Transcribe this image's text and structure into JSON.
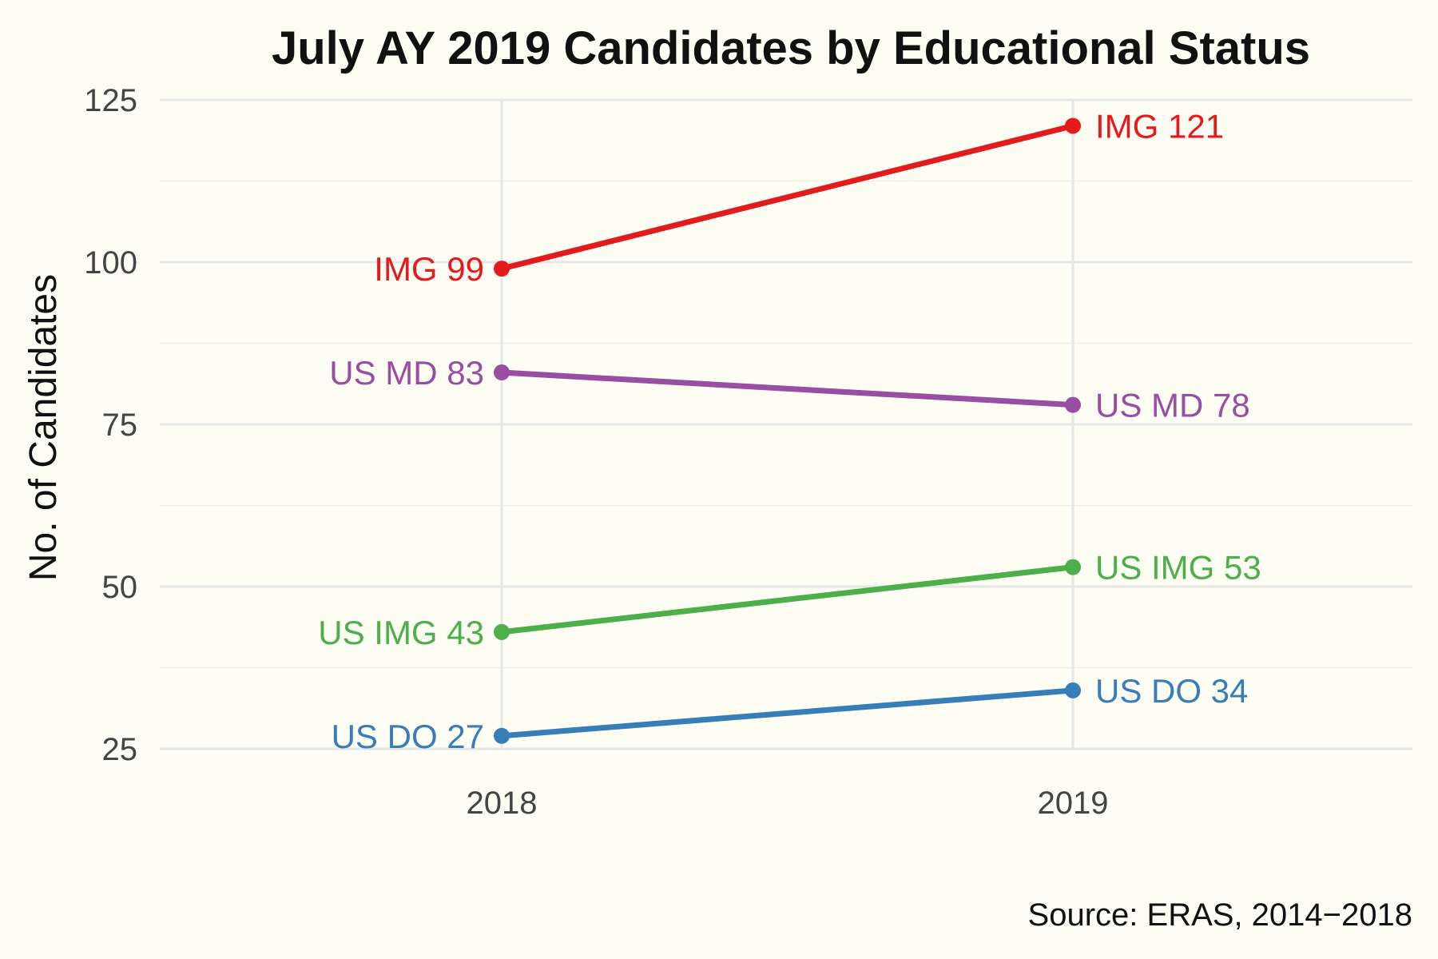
{
  "chart_data": {
    "type": "line",
    "title": "July AY 2019 Candidates by Educational Status",
    "xlabel": "",
    "ylabel": "No. of Candidates",
    "caption": "Source: ERAS, 2014−2018",
    "x": [
      "2018",
      "2019"
    ],
    "ylim": [
      25,
      125
    ],
    "yticks": [
      25,
      50,
      75,
      100,
      125
    ],
    "grid": true,
    "legend": "none",
    "series": [
      {
        "name": "IMG",
        "values": [
          99,
          121
        ],
        "labels": [
          "IMG 99",
          "IMG 121"
        ],
        "color": "#e41a1c"
      },
      {
        "name": "US MD",
        "values": [
          83,
          78
        ],
        "labels": [
          "US MD 83",
          "US MD 78"
        ],
        "color": "#984ea3"
      },
      {
        "name": "US IMG",
        "values": [
          43,
          53
        ],
        "labels": [
          "US IMG 43",
          "US IMG 53"
        ],
        "color": "#4daf4a"
      },
      {
        "name": "US DO",
        "values": [
          27,
          34
        ],
        "labels": [
          "US DO 27",
          "US DO 34"
        ],
        "color": "#377eb8"
      }
    ]
  }
}
